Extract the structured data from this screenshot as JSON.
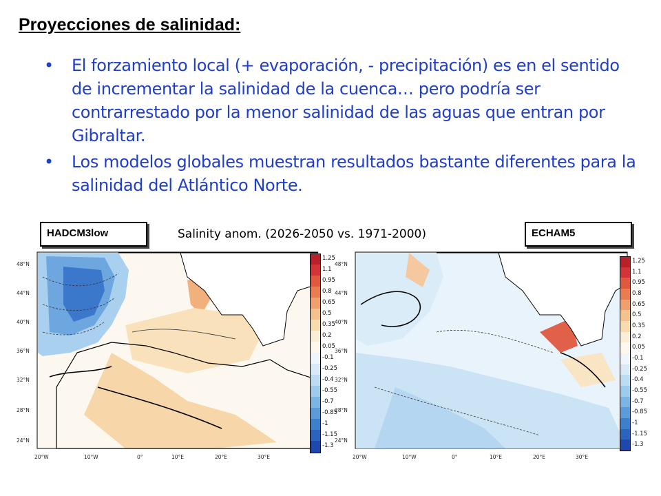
{
  "slide": {
    "title": "Proyecciones de salinidad:",
    "bullets": [
      "El forzamiento local (+ evaporación, - precipitación) es en el sentido de incrementar la salinidad de la cuenca… pero podría ser contrarrestado por la menor salinidad de las aguas que entran por Gibraltar.",
      "Los modelos globales muestran resultados bastante diferentes para la salinidad del Atlántico Norte."
    ],
    "bullet_symbol": "•"
  },
  "figure": {
    "caption": "Salinity anom. (2026-2050 vs. 1971-2000)",
    "left_model": "HADCM3low",
    "right_model": "ECHAM5",
    "lat_labels": [
      "48°N",
      "44°N",
      "40°N",
      "36°N",
      "32°N",
      "28°N",
      "24°N"
    ],
    "lon_labels": [
      "20°W",
      "10°W",
      "0°",
      "10°E",
      "20°E",
      "30°E"
    ],
    "colorbar_labels": [
      "1.25",
      "1.1",
      "0.95",
      "0.8",
      "0.65",
      "0.5",
      "0.35",
      "0.2",
      "0.05",
      "-0.1",
      "-0.25",
      "-0.4",
      "-0.55",
      "-0.7",
      "-0.85",
      "-1",
      "-1.15",
      "-1.3"
    ],
    "colorbar_colors": [
      "#b8202a",
      "#d2343a",
      "#e0593f",
      "#ea7c52",
      "#f09f6e",
      "#f5c18f",
      "#f8dcb0",
      "#fbeed7",
      "#fdf7ee",
      "#eef5fb",
      "#d8eaf7",
      "#bddcf2",
      "#9ecbec",
      "#7cb5e3",
      "#5a9bd8",
      "#3e7fcb",
      "#2c63bd",
      "#1e48ae"
    ],
    "colors": {
      "land": "#ffffff",
      "coast": "#000000",
      "text_blue": "#1f3ec9"
    }
  }
}
